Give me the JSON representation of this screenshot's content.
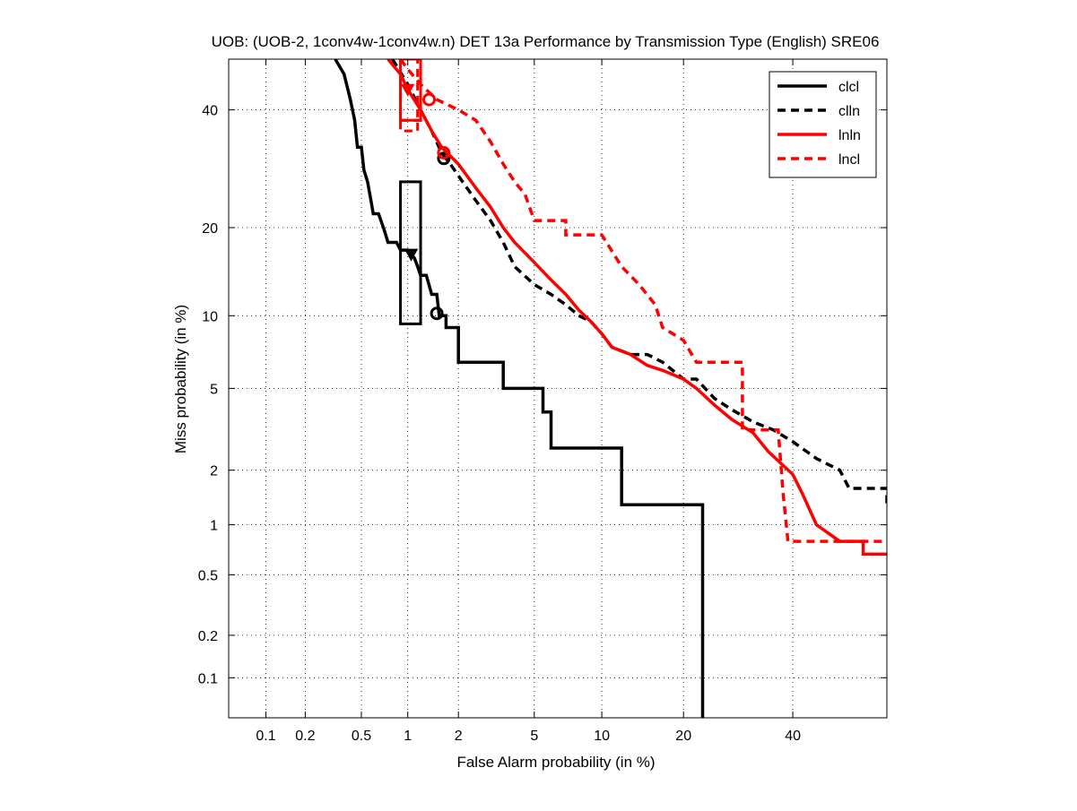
{
  "chart_data": {
    "type": "line",
    "title": "UOB: (UOB-2, 1conv4w-1conv4w.n) DET 13a Performance by Transmission Type (English) SRE06",
    "xlabel": "False Alarm probability (in %)",
    "ylabel": "Miss probability (in %)",
    "scale": "probit",
    "xlim": [
      0.05,
      60
    ],
    "ylim": [
      0.05,
      50
    ],
    "xticks": [
      0.1,
      0.2,
      0.5,
      1,
      2,
      5,
      10,
      20,
      40
    ],
    "xtick_labels": [
      "0.1",
      "0.2",
      "0.5",
      "1",
      "2",
      "5",
      "10",
      "20",
      "40"
    ],
    "yticks": [
      0.1,
      0.2,
      0.5,
      1,
      2,
      5,
      10,
      20,
      40
    ],
    "ytick_labels": [
      "0.1",
      "0.2",
      "0.5",
      "1",
      "2",
      "5",
      "10",
      "20",
      "40"
    ],
    "grid": true,
    "legend_position": "top-right",
    "series": [
      {
        "name": "clcl",
        "color": "#000000",
        "dash": "solid",
        "points": [
          [
            0.33,
            50
          ],
          [
            0.38,
            47
          ],
          [
            0.42,
            42
          ],
          [
            0.45,
            38
          ],
          [
            0.47,
            33
          ],
          [
            0.5,
            33
          ],
          [
            0.52,
            29
          ],
          [
            0.55,
            27
          ],
          [
            0.58,
            24
          ],
          [
            0.6,
            22
          ],
          [
            0.65,
            22
          ],
          [
            0.7,
            20
          ],
          [
            0.75,
            18
          ],
          [
            0.85,
            18
          ],
          [
            0.9,
            17
          ],
          [
            1.0,
            17
          ],
          [
            1.1,
            16
          ],
          [
            1.15,
            15
          ],
          [
            1.2,
            14
          ],
          [
            1.3,
            14
          ],
          [
            1.4,
            12
          ],
          [
            1.5,
            12
          ],
          [
            1.55,
            10
          ],
          [
            1.7,
            10
          ],
          [
            1.7,
            9
          ],
          [
            2.0,
            9
          ],
          [
            2.0,
            6.5
          ],
          [
            3.5,
            6.5
          ],
          [
            3.5,
            5
          ],
          [
            5.5,
            5
          ],
          [
            5.5,
            3.9
          ],
          [
            6.0,
            3.9
          ],
          [
            6.0,
            2.6
          ],
          [
            12.0,
            2.6
          ],
          [
            12.0,
            1.3
          ],
          [
            23.0,
            1.3
          ],
          [
            23.0,
            0.05
          ]
        ],
        "markers": [
          {
            "x": 1.5,
            "y": 10.2,
            "symbol": "circle"
          },
          {
            "x": 1.05,
            "y": 16.5,
            "symbol": "triangle"
          }
        ],
        "confidence_box": {
          "x": [
            0.9,
            1.2
          ],
          "y": [
            9.3,
            27
          ]
        }
      },
      {
        "name": "clln",
        "color": "#000000",
        "dash": "dashed",
        "points": [
          [
            0.8,
            50
          ],
          [
            1.0,
            45
          ],
          [
            1.2,
            40
          ],
          [
            1.4,
            36
          ],
          [
            1.6,
            32
          ],
          [
            1.8,
            30
          ],
          [
            2.0,
            28
          ],
          [
            2.5,
            24
          ],
          [
            3.0,
            21
          ],
          [
            3.5,
            18
          ],
          [
            4.0,
            15
          ],
          [
            5.0,
            13
          ],
          [
            6.0,
            12
          ],
          [
            7.0,
            11
          ],
          [
            8.0,
            10
          ],
          [
            9.0,
            9.5
          ],
          [
            10.0,
            8.5
          ],
          [
            11.0,
            7.5
          ],
          [
            13.0,
            7
          ],
          [
            15.0,
            7
          ],
          [
            17.0,
            6.5
          ],
          [
            20.0,
            5.5
          ],
          [
            22.0,
            5.5
          ],
          [
            25.0,
            4.5
          ],
          [
            28.0,
            4
          ],
          [
            32.0,
            3.5
          ],
          [
            36.0,
            3.2
          ],
          [
            40.0,
            2.8
          ],
          [
            45.0,
            2.3
          ],
          [
            50.0,
            2
          ],
          [
            52.0,
            1.6
          ],
          [
            60.0,
            1.6
          ],
          [
            60.0,
            1.3
          ]
        ],
        "markers": [
          {
            "x": 1.65,
            "y": 31,
            "symbol": "circle"
          }
        ],
        "confidence_box": {
          "x": [
            0.9,
            1.2
          ],
          "y": [
            38,
            50
          ]
        }
      },
      {
        "name": "lnln",
        "color": "#ff0000",
        "dash": "solid",
        "points": [
          [
            0.75,
            50
          ],
          [
            0.9,
            47
          ],
          [
            1.0,
            44
          ],
          [
            1.2,
            40
          ],
          [
            1.4,
            36
          ],
          [
            1.6,
            33
          ],
          [
            2.0,
            30
          ],
          [
            2.5,
            26
          ],
          [
            3.0,
            23
          ],
          [
            3.5,
            20
          ],
          [
            4.0,
            18
          ],
          [
            5.0,
            15.5
          ],
          [
            6.0,
            13.5
          ],
          [
            7.0,
            12
          ],
          [
            8.0,
            10.5
          ],
          [
            9.0,
            9.5
          ],
          [
            10.0,
            8.5
          ],
          [
            11.0,
            7.5
          ],
          [
            13.0,
            7
          ],
          [
            15.0,
            6.3
          ],
          [
            17.0,
            6
          ],
          [
            20.0,
            5.5
          ],
          [
            22.0,
            5
          ],
          [
            25.0,
            4.2
          ],
          [
            28.0,
            3.6
          ],
          [
            32.0,
            3.1
          ],
          [
            35.0,
            2.5
          ],
          [
            40.0,
            1.9
          ],
          [
            42.0,
            1.5
          ],
          [
            45.0,
            1.0
          ],
          [
            50.0,
            0.8
          ],
          [
            55.0,
            0.8
          ],
          [
            55.0,
            0.67
          ],
          [
            60.0,
            0.67
          ]
        ],
        "markers": [
          {
            "x": 1.65,
            "y": 32,
            "symbol": "circle"
          },
          {
            "x": 1.0,
            "y": 44,
            "symbol": "triangle"
          }
        ],
        "confidence_box": {
          "x": [
            0.9,
            1.2
          ],
          "y": [
            38,
            50
          ]
        }
      },
      {
        "name": "lncl",
        "color": "#ff0000",
        "dash": "dashed",
        "points": [
          [
            0.9,
            50
          ],
          [
            1.0,
            48
          ],
          [
            1.2,
            45
          ],
          [
            1.5,
            42
          ],
          [
            2.0,
            40
          ],
          [
            2.5,
            38
          ],
          [
            3.0,
            34
          ],
          [
            3.5,
            30
          ],
          [
            4.0,
            27
          ],
          [
            4.5,
            25
          ],
          [
            5.0,
            21
          ],
          [
            7.0,
            21
          ],
          [
            7.0,
            19
          ],
          [
            10.0,
            19
          ],
          [
            12.0,
            15
          ],
          [
            14.0,
            13
          ],
          [
            16.0,
            11
          ],
          [
            17.0,
            9
          ],
          [
            20.0,
            8
          ],
          [
            22.0,
            6.5
          ],
          [
            30.0,
            6.5
          ],
          [
            30.0,
            3.2
          ],
          [
            37.0,
            3.2
          ],
          [
            38.0,
            1.5
          ],
          [
            39.0,
            0.8
          ],
          [
            60.0,
            0.8
          ]
        ],
        "markers": [
          {
            "x": 1.35,
            "y": 42,
            "symbol": "circle"
          }
        ],
        "confidence_box": {
          "x": [
            0.9,
            1.15
          ],
          "y": [
            36,
            50
          ]
        }
      }
    ]
  }
}
